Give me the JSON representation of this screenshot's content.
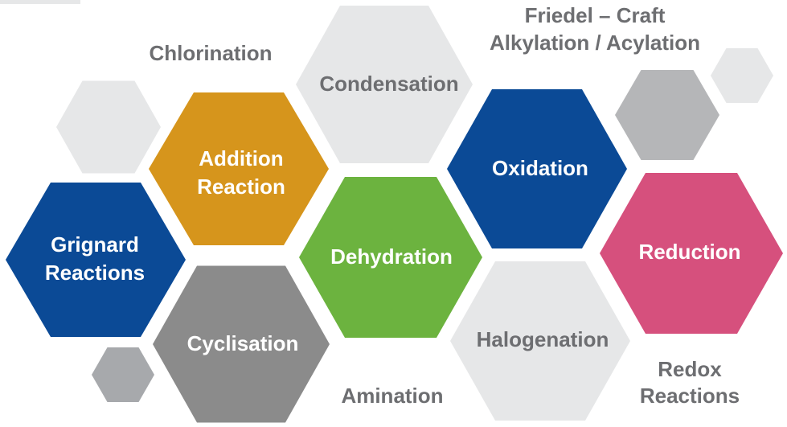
{
  "nodes": [
    {
      "lines": [
        "Chlorination"
      ]
    },
    {
      "lines": [
        "Condensation"
      ]
    },
    {
      "lines": [
        "Friedel – Craft",
        "Alkylation / Acylation"
      ]
    },
    {
      "lines": [
        "Addition",
        "Reaction"
      ]
    },
    {
      "lines": [
        "Oxidation"
      ]
    },
    {
      "lines": [
        "Grignard",
        "Reactions"
      ]
    },
    {
      "lines": [
        "Dehydration"
      ]
    },
    {
      "lines": [
        "Reduction"
      ]
    },
    {
      "lines": [
        "Cyclisation"
      ]
    },
    {
      "lines": [
        "Halogenation"
      ]
    },
    {
      "lines": [
        "Amination"
      ]
    },
    {
      "lines": [
        "Redox",
        "Reactions"
      ]
    }
  ]
}
